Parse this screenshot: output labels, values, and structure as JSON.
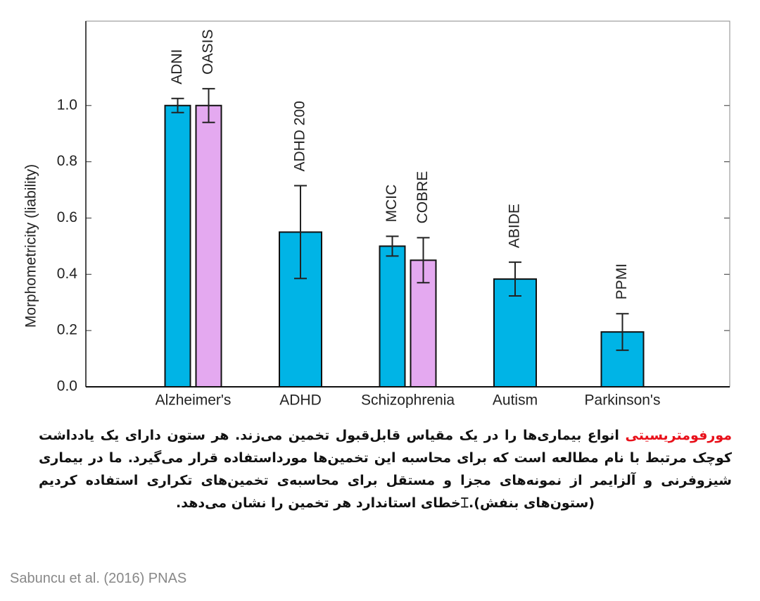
{
  "chart_data": {
    "type": "bar",
    "y_label": "Morphometricity (liability)",
    "ylim": [
      0,
      1.3
    ],
    "yticks": [
      {
        "value": 0,
        "label": "0.0"
      },
      0.2,
      0.4,
      0.6,
      0.8,
      {
        "value": 1,
        "label": "1.0"
      }
    ],
    "categories": [
      "Alzheimer's",
      "ADHD",
      "Schizophrenia",
      "Autism",
      "Parkinson's"
    ],
    "groups": [
      [
        {
          "label": "ADNI",
          "value": 1.0,
          "error": 0.025,
          "color": "#00b4e6"
        },
        {
          "label": "OASIS",
          "value": 1.0,
          "error": 0.06,
          "color": "#e4a9f0"
        }
      ],
      [
        {
          "label": "ADHD 200",
          "value": 0.55,
          "error": 0.165,
          "color": "#00b4e6"
        }
      ],
      [
        {
          "label": "MCIC",
          "value": 0.5,
          "error": 0.035,
          "color": "#00b4e6"
        },
        {
          "label": "COBRE",
          "value": 0.45,
          "error": 0.08,
          "color": "#e4a9f0"
        }
      ],
      [
        {
          "label": "ABIDE",
          "value": 0.383,
          "error": 0.06,
          "color": "#00b4e6"
        }
      ],
      [
        {
          "label": "PPMI",
          "value": 0.195,
          "error": 0.065,
          "color": "#00b4e6"
        }
      ]
    ]
  },
  "caption": {
    "highlight": "مورفومتریسیتی",
    "text": " انواع بیماری‌ها را در یک مقیاس قابل‌قبول تخمین می‌زند. هر ستون دارای یک یادداشت کوچک مرتبط با نام مطالعه است که برای محاسبه این تخمین‌ها مورداستفاده قرار می‌گیرد. ما در بیماری شیزوفرنی و آلزایمر از نمونه‌های مجزا و مستقل برای محاسبه‌ی تخمین‌های تکراری استفاده کردیم (ستون‌های بنفش).⌶خطای استاندارد هر تخمین را نشان می‌دهد."
  },
  "citation": "Sabuncu et al. (2016) PNAS"
}
